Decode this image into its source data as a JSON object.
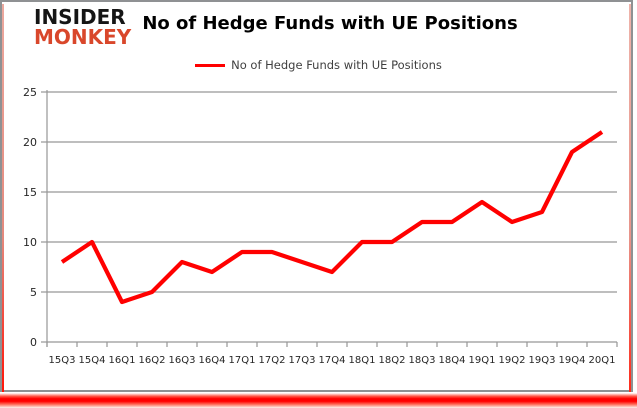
{
  "branding": {
    "logo_line1": "INSIDER",
    "logo_line2": "MONKEY",
    "logo_color_top": "#151515",
    "logo_color_bottom": "#d9472b"
  },
  "header": {
    "title": "No of Hedge Funds with UE Positions"
  },
  "legend": {
    "label": "No of Hedge Funds with UE Positions",
    "line_color": "#ff0000"
  },
  "chart_data": {
    "type": "line",
    "title": "No of Hedge Funds with UE Positions",
    "categories": [
      "15Q3",
      "15Q4",
      "16Q1",
      "16Q2",
      "16Q3",
      "16Q4",
      "17Q1",
      "17Q2",
      "17Q3",
      "17Q4",
      "18Q1",
      "18Q2",
      "18Q3",
      "18Q4",
      "19Q1",
      "19Q2",
      "19Q3",
      "19Q4",
      "20Q1"
    ],
    "series": [
      {
        "name": "No of Hedge Funds with UE Positions",
        "color": "#ff0000",
        "values": [
          8,
          10,
          4,
          5,
          8,
          7,
          9,
          9,
          8,
          7,
          10,
          10,
          12,
          12,
          14,
          12,
          13,
          19,
          21
        ]
      }
    ],
    "xlabel": "",
    "ylabel": "",
    "ylim": [
      0,
      25
    ],
    "yticks": [
      0,
      5,
      10,
      15,
      20,
      25
    ],
    "grid": true,
    "legend_position": "top",
    "gridline_color": "#969696",
    "axis_text_color": "#262626",
    "frame_accent_color": "#ff0000"
  }
}
